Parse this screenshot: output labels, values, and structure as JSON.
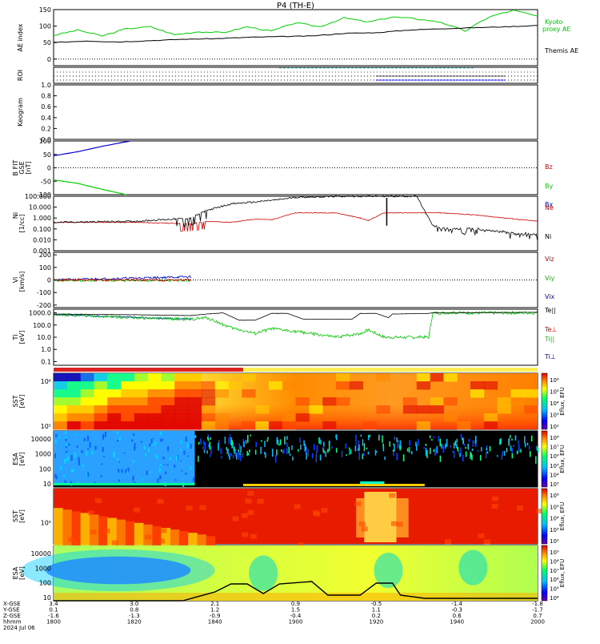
{
  "page": {
    "title": "P4 (TH-E)"
  },
  "chart_data": [
    {
      "panel": "ae_index",
      "type": "line",
      "ylabel": "AE index",
      "ylim": [
        -20,
        150
      ],
      "yticks": [
        "150",
        "100",
        "50",
        "0"
      ],
      "series": [
        {
          "name": "Kyoto proxy AE",
          "color": "#00cc00",
          "x": [
            0,
            3,
            6,
            9,
            12,
            15,
            18,
            21,
            24,
            27,
            30,
            33,
            36,
            39,
            42,
            45,
            48,
            51,
            54,
            57,
            60
          ],
          "values": [
            72,
            88,
            70,
            92,
            98,
            74,
            83,
            80,
            98,
            85,
            110,
            98,
            125,
            112,
            128,
            122,
            112,
            85,
            128,
            148,
            130
          ]
        },
        {
          "name": "Themis AE",
          "color": "#000000",
          "x": [
            0,
            4,
            8,
            12,
            16,
            20,
            24,
            28,
            32,
            36,
            40,
            44,
            48,
            52,
            56,
            60
          ],
          "values": [
            50,
            55,
            52,
            56,
            60,
            62,
            66,
            68,
            70,
            78,
            80,
            88,
            92,
            95,
            98,
            102
          ]
        }
      ]
    },
    {
      "panel": "roi",
      "type": "scatter",
      "ylabel": "ROI",
      "series": [
        {
          "name": "roi-red",
          "color": "#ff0000",
          "values": [
            1
          ]
        },
        {
          "name": "roi-black",
          "color": "#000000",
          "values": [
            1
          ]
        },
        {
          "name": "roi-blue",
          "color": "#0000ff",
          "values": [
            1
          ]
        }
      ]
    },
    {
      "panel": "keogram",
      "type": "line",
      "ylabel": "Keogram",
      "ylim": [
        0,
        1
      ],
      "yticks": [
        "1.0",
        "0.8",
        "0.6",
        "0.4",
        "0.2",
        "0.0"
      ]
    },
    {
      "panel": "b_fit",
      "type": "line",
      "ylabel": "B FIT GSE [nT]",
      "ylim": [
        -100,
        100
      ],
      "yticks": [
        "100",
        "50",
        "0",
        "-50",
        "-100"
      ],
      "series": [
        {
          "name": "Bz",
          "color": "#cc0000",
          "x": [],
          "values": []
        },
        {
          "name": "By",
          "color": "#00cc00",
          "x": [
            0,
            3,
            6,
            9
          ],
          "values": [
            -45,
            -58,
            -80,
            -100
          ]
        },
        {
          "name": "Bx",
          "color": "#0000cc",
          "x": [
            0,
            3,
            6,
            9.5
          ],
          "values": [
            45,
            60,
            80,
            100
          ]
        }
      ]
    },
    {
      "panel": "density",
      "type": "line",
      "ylabel": "Ni [1/cc]",
      "scale": "log",
      "ylim": [
        0.001,
        100
      ],
      "yticks": [
        "100.000",
        "10.000",
        "1.000",
        "0.100",
        "0.010",
        "0.001"
      ],
      "series": [
        {
          "name": "Ne",
          "color": "#cc0000",
          "x": [
            0,
            10,
            17,
            19,
            22,
            25,
            27,
            30,
            35,
            38,
            39,
            41,
            44,
            48,
            52,
            56,
            60
          ],
          "values": [
            0.4,
            0.4,
            0.3,
            0.5,
            0.4,
            0.8,
            0.7,
            3,
            3,
            1,
            0.6,
            3,
            3,
            3,
            2,
            1,
            0.5
          ]
        },
        {
          "name": "Ni",
          "color": "#000000",
          "x": [
            0,
            10,
            17,
            19,
            22,
            25,
            28,
            30,
            36,
            40,
            41.5,
            45,
            47,
            49,
            52,
            56,
            60
          ],
          "values": [
            0.4,
            0.5,
            1,
            5,
            20,
            30,
            50,
            80,
            100,
            100,
            100,
            100,
            0.2,
            0.1,
            0.1,
            0.05,
            0.03
          ]
        }
      ]
    },
    {
      "panel": "velocity",
      "type": "line",
      "ylabel": "Vi [km/s]",
      "ylim": [
        -220,
        220
      ],
      "yticks": [
        "200",
        "100",
        "0",
        "-100",
        "-200"
      ],
      "series": [
        {
          "name": "Viz",
          "color": "#cc0000",
          "x": [
            0,
            17
          ],
          "values": [
            0,
            0
          ]
        },
        {
          "name": "Viy",
          "color": "#00cc00",
          "x": [
            0,
            17
          ],
          "values": [
            -5,
            -5
          ]
        },
        {
          "name": "Vix",
          "color": "#0000cc",
          "x": [
            0,
            17
          ],
          "values": [
            0,
            25
          ]
        }
      ]
    },
    {
      "panel": "temperature",
      "type": "line",
      "ylabel": "Ti [eV]",
      "scale": "log",
      "ylim": [
        0.05,
        2000
      ],
      "yticks": [
        "1000.0",
        "100.0",
        "10.0",
        "1.0",
        "0.1"
      ],
      "series": [
        {
          "name": "Te||",
          "color": "#000000",
          "x": [
            0,
            10,
            17,
            19,
            21,
            23,
            25,
            27,
            29,
            31,
            33,
            37,
            38,
            40,
            41.5,
            42,
            46.5,
            47,
            60
          ],
          "values": [
            800,
            700,
            600,
            800,
            1000,
            250,
            250,
            900,
            900,
            300,
            300,
            300,
            900,
            900,
            400,
            800,
            900,
            1000,
            1100
          ]
        },
        {
          "name": "Te⊥",
          "color": "#cc0000",
          "x": [],
          "values": []
        },
        {
          "name": "Ti||",
          "color": "#00cc00",
          "x": [
            0,
            10,
            17,
            19,
            22,
            25,
            27,
            30,
            35,
            38,
            39,
            41,
            41.5,
            46.5,
            47,
            60
          ],
          "values": [
            800,
            400,
            300,
            400,
            60,
            20,
            50,
            30,
            10,
            20,
            40,
            10,
            10,
            10,
            1000,
            1000
          ]
        },
        {
          "name": "Ti⊥",
          "color": "#0000cc",
          "x": [
            0,
            17
          ],
          "values": [
            700,
            300
          ]
        }
      ]
    },
    {
      "panel": "sst_ion",
      "type": "heatmap",
      "ylabel": "SST [eV]",
      "yticks": [
        "10⁶",
        "10⁵"
      ],
      "colorbar_label": "Eflux, EFU",
      "colorbar_ticks": [
        "10⁶",
        "10⁵",
        "10⁴",
        "10³",
        "10²"
      ]
    },
    {
      "panel": "esa_ion",
      "type": "heatmap",
      "ylabel": "ESA [eV]",
      "yticks": [
        "10000",
        "1000",
        "100",
        "10"
      ],
      "colorbar_label": "Eflux, EFU",
      "colorbar_ticks": [
        "10⁸",
        "10⁷",
        "10⁶",
        "10⁵",
        "10⁴",
        "10³"
      ]
    },
    {
      "panel": "sst_electron",
      "type": "heatmap",
      "ylabel": "SST [eV]",
      "yticks": [
        "10⁵"
      ],
      "colorbar_label": "Eflux, EFU",
      "colorbar_ticks": [
        "10⁶",
        "10⁵",
        "10⁴",
        "10³",
        "10²"
      ]
    },
    {
      "panel": "esa_electron",
      "type": "heatmap",
      "ylabel": "ESA [eV]",
      "yticks": [
        "10000",
        "1000",
        "100",
        "10"
      ],
      "colorbar_label": "Eflux, EFU",
      "colorbar_ticks": [
        "10⁹",
        "10⁸",
        "10⁷",
        "10⁶",
        "10⁵",
        "10⁴"
      ]
    }
  ],
  "axis": {
    "row_labels": [
      "X-GSE",
      "Y-GSE",
      "Z-GSE",
      "hhmm",
      "2024 Jul 06"
    ],
    "ticks": [
      {
        "x": "3.4",
        "y": "0.1",
        "z": "-1.6",
        "time": "1800"
      },
      {
        "x": "3.0",
        "y": "0.8",
        "z": "-1.3",
        "time": "1820"
      },
      {
        "x": "2.1",
        "y": "1.2",
        "z": "-0.9",
        "time": "1840"
      },
      {
        "x": "0.9",
        "y": "1.5",
        "z": "-0.4",
        "time": "1900"
      },
      {
        "x": "-0.5",
        "y": "1.1",
        "z": "0.2",
        "time": "1920"
      },
      {
        "x": "-1.4",
        "y": "-0.3",
        "z": "0.6",
        "time": "1940"
      },
      {
        "x": "-1.8",
        "y": "-1.7",
        "z": "0.7",
        "time": "2000"
      }
    ]
  },
  "mode_bar": {
    "colors": [
      "#dd2222",
      "#ffee55"
    ]
  }
}
